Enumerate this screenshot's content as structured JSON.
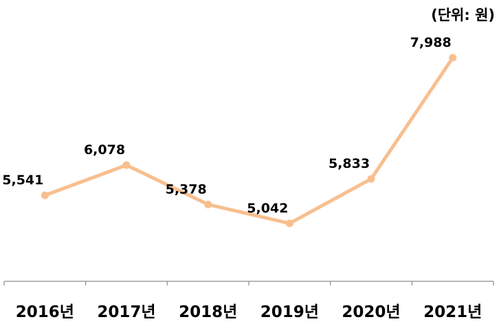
{
  "unit_label": "(단위: 원)",
  "chart_data": {
    "type": "line",
    "categories": [
      "2016년",
      "2017년",
      "2018년",
      "2019년",
      "2020년",
      "2021년"
    ],
    "series": [
      {
        "values": [
          5541,
          6078,
          5378,
          5042,
          5833,
          7988
        ]
      }
    ],
    "data_labels": [
      "5,541",
      "6,078",
      "5,378",
      "5,042",
      "5,833",
      "7,988"
    ],
    "line_color": "#F8BF8E",
    "marker_color": "#F8BF8E",
    "label_color": "#000000",
    "axis_color": "#8c8c8c",
    "grid": false,
    "legend": "none",
    "title": "",
    "xlabel": "",
    "ylabel": ""
  }
}
